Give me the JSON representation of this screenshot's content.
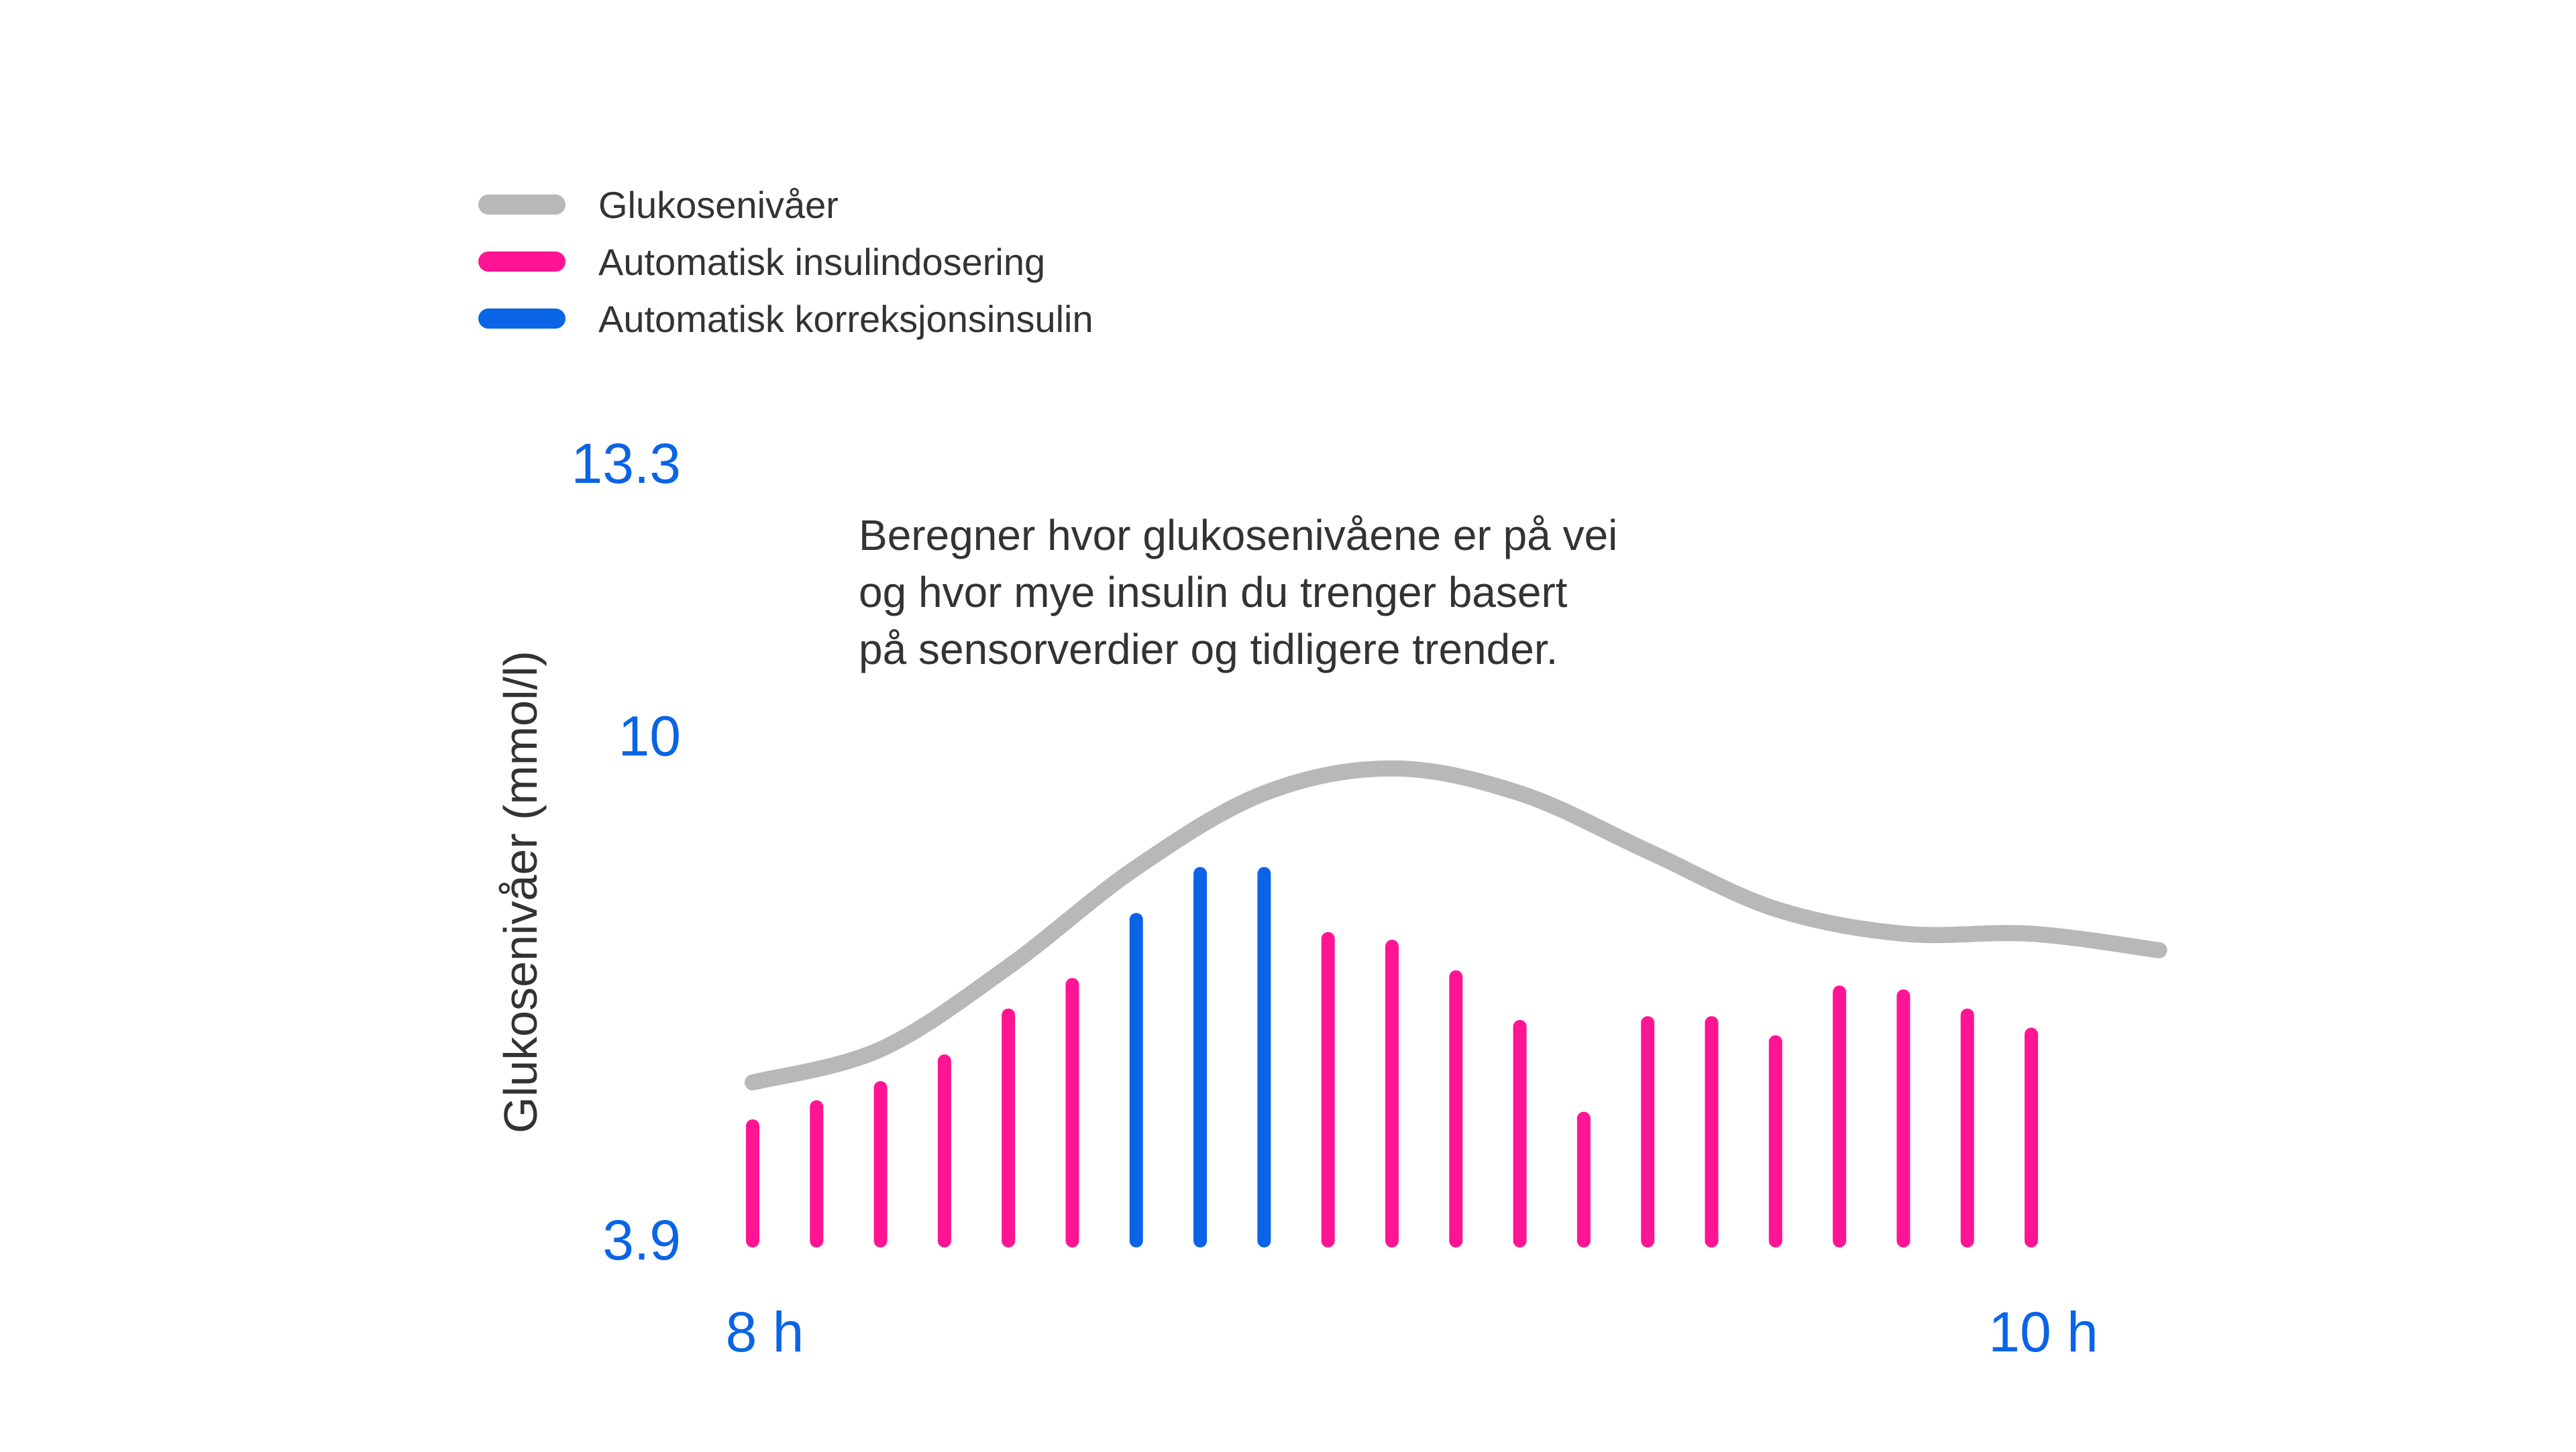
{
  "chart_data": {
    "type": "bar",
    "ylabel": "Glukosenivåer (mmol/l)",
    "y_ticks": [
      "13.3",
      "10",
      "3.9"
    ],
    "x_ticks": [
      "8 h",
      "10 h"
    ],
    "annotation": [
      "Beregner hvor glukosenivåene er på vei",
      "og hvor mye insulin du trenger basert",
      "på sensorverdier og tidligere trender."
    ],
    "legend": [
      {
        "label": "Glukosenivåer",
        "color": "#b8b8b8"
      },
      {
        "label": "Automatisk insulindosering",
        "color": "#ff1493"
      },
      {
        "label": "Automatisk korreksjonsinsulin",
        "color": "#0a64e6"
      }
    ],
    "series": [
      {
        "name": "Glukosenivåer",
        "type": "line",
        "color": "#b8b8b8",
        "x_hours": [
          8.0,
          8.2,
          8.4,
          8.6,
          8.8,
          9.0,
          9.2,
          9.4,
          9.6,
          9.8,
          10.0,
          10.2
        ],
        "values": [
          5.8,
          6.2,
          7.2,
          8.4,
          9.3,
          9.6,
          9.3,
          8.6,
          7.9,
          7.6,
          7.6,
          7.4
        ]
      },
      {
        "name": "Automatisk insulindosering / Automatisk korreksjonsinsulin",
        "type": "bar",
        "x_hours": [
          8.0,
          8.1,
          8.2,
          8.3,
          8.4,
          8.5,
          8.6,
          8.7,
          8.8,
          8.9,
          9.0,
          9.1,
          9.2,
          9.3,
          9.4,
          9.5,
          9.6,
          9.7,
          9.8,
          9.9,
          10.0
        ],
        "values": [
          0.3,
          0.35,
          0.4,
          0.47,
          0.59,
          0.67,
          0.84,
          0.96,
          0.96,
          0.79,
          0.77,
          0.69,
          0.56,
          0.32,
          0.57,
          0.57,
          0.52,
          0.65,
          0.64,
          0.59,
          0.54
        ],
        "kinds": [
          "auto",
          "auto",
          "auto",
          "auto",
          "auto",
          "auto",
          "correction",
          "correction",
          "correction",
          "auto",
          "auto",
          "auto",
          "auto",
          "auto",
          "auto",
          "auto",
          "auto",
          "auto",
          "auto",
          "auto",
          "auto"
        ]
      }
    ],
    "ylim": [
      3.9,
      13.3
    ],
    "xlim_hours": [
      8,
      10
    ],
    "grid": false,
    "legend_position": "top-left"
  }
}
